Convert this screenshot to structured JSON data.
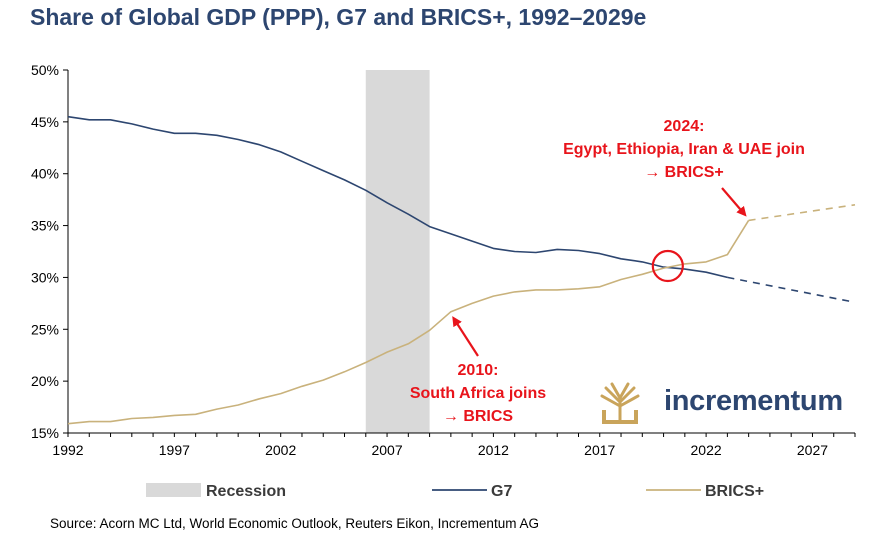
{
  "chart_data": {
    "type": "line",
    "title": "Share of Global GDP (PPP), G7 and BRICS+, 1992–2029e",
    "xlim": [
      1992,
      2029
    ],
    "ylim": [
      15,
      50
    ],
    "y_ticks": [
      "15%",
      "20%",
      "25%",
      "30%",
      "35%",
      "40%",
      "45%",
      "50%"
    ],
    "x_ticks": [
      "1992",
      "1997",
      "2002",
      "2007",
      "2012",
      "2017",
      "2022",
      "2027"
    ],
    "recession": {
      "label": "Recession",
      "start": 2006,
      "end": 2009
    },
    "series": [
      {
        "name": "G7",
        "color": "#2d4670",
        "projection_from": 2023,
        "points": [
          [
            1992,
            45.5
          ],
          [
            1993,
            45.2
          ],
          [
            1994,
            45.2
          ],
          [
            1995,
            44.8
          ],
          [
            1996,
            44.3
          ],
          [
            1997,
            43.9
          ],
          [
            1998,
            43.9
          ],
          [
            1999,
            43.7
          ],
          [
            2000,
            43.3
          ],
          [
            2001,
            42.8
          ],
          [
            2002,
            42.1
          ],
          [
            2003,
            41.2
          ],
          [
            2004,
            40.3
          ],
          [
            2005,
            39.4
          ],
          [
            2006,
            38.4
          ],
          [
            2007,
            37.2
          ],
          [
            2008,
            36.1
          ],
          [
            2009,
            34.9
          ],
          [
            2010,
            34.2
          ],
          [
            2011,
            33.5
          ],
          [
            2012,
            32.8
          ],
          [
            2013,
            32.5
          ],
          [
            2014,
            32.4
          ],
          [
            2015,
            32.7
          ],
          [
            2016,
            32.6
          ],
          [
            2017,
            32.3
          ],
          [
            2018,
            31.8
          ],
          [
            2019,
            31.5
          ],
          [
            2020,
            31.0
          ],
          [
            2021,
            30.8
          ],
          [
            2022,
            30.5
          ],
          [
            2023,
            30.0
          ],
          [
            2029,
            27.6
          ]
        ]
      },
      {
        "name": "BRICS+",
        "color": "#c9b27c",
        "projection_from": 2024,
        "points": [
          [
            1992,
            15.9
          ],
          [
            1993,
            16.1
          ],
          [
            1994,
            16.1
          ],
          [
            1995,
            16.4
          ],
          [
            1996,
            16.5
          ],
          [
            1997,
            16.7
          ],
          [
            1998,
            16.8
          ],
          [
            1999,
            17.3
          ],
          [
            2000,
            17.7
          ],
          [
            2001,
            18.3
          ],
          [
            2002,
            18.8
          ],
          [
            2003,
            19.5
          ],
          [
            2004,
            20.1
          ],
          [
            2005,
            20.9
          ],
          [
            2006,
            21.8
          ],
          [
            2007,
            22.8
          ],
          [
            2008,
            23.6
          ],
          [
            2009,
            24.9
          ],
          [
            2010,
            26.7
          ],
          [
            2011,
            27.5
          ],
          [
            2012,
            28.2
          ],
          [
            2013,
            28.6
          ],
          [
            2014,
            28.8
          ],
          [
            2015,
            28.8
          ],
          [
            2016,
            28.9
          ],
          [
            2017,
            29.1
          ],
          [
            2018,
            29.8
          ],
          [
            2019,
            30.3
          ],
          [
            2020,
            30.9
          ],
          [
            2021,
            31.3
          ],
          [
            2022,
            31.5
          ],
          [
            2023,
            32.2
          ],
          [
            2024,
            35.5
          ],
          [
            2029,
            37.0
          ]
        ]
      }
    ],
    "annotations": {
      "a2024": [
        "2024:",
        "Egypt, Ethiopia, Iran & UAE join",
        "→ BRICS+"
      ],
      "a2010": [
        "2010:",
        "South Africa joins",
        "→ BRICS"
      ]
    },
    "legend": {
      "position": "bottom"
    }
  },
  "source": "Source: Acorn MC Ltd, World Economic Outlook, Reuters Eikon, Incrementum AG",
  "logo_text": "incrementum",
  "colors": {
    "title": "#2d4670",
    "annotation": "#e8141b",
    "recession": "#d9d9d9",
    "logo_gold": "#c9a45b"
  }
}
